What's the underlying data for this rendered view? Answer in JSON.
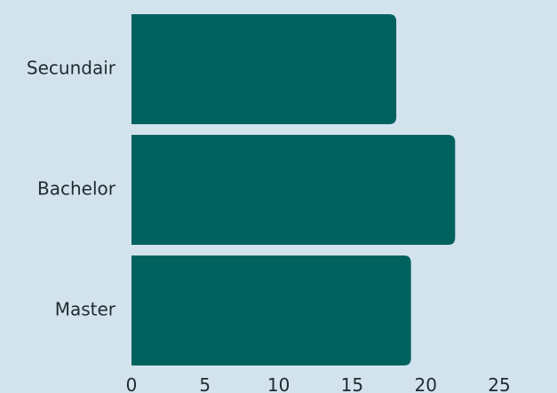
{
  "chart_data": {
    "type": "bar",
    "orientation": "horizontal",
    "categories": [
      "Secundair",
      "Bachelor",
      "Master"
    ],
    "values": [
      18,
      22,
      19
    ],
    "xlim": [
      0,
      25
    ],
    "x_ticks": [
      "0",
      "5",
      "10",
      "15",
      "20",
      "25"
    ],
    "title": "",
    "xlabel": "",
    "ylabel": "",
    "grid": false,
    "legend": "none",
    "colors": {
      "bar": "#00625f",
      "background": "#d3e3ee",
      "text": "#1f2a30"
    }
  }
}
